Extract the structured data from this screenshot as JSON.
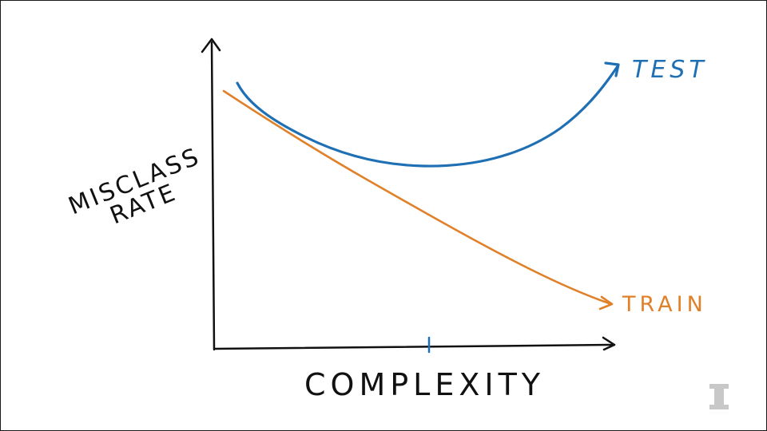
{
  "diagram": {
    "y_axis_label_line1": "Misclass",
    "y_axis_label_line2": "Rate",
    "x_axis_label": "Complexity",
    "curves": [
      {
        "name": "test",
        "label": "Test",
        "color": "#1f6fb4"
      },
      {
        "name": "train",
        "label": "Train",
        "color": "#e0812a"
      }
    ],
    "axis_color": "#111111",
    "tick_color": "#1f6fb4",
    "logo": {
      "name": "block-i-logo",
      "color": "#c8c8c8"
    }
  }
}
